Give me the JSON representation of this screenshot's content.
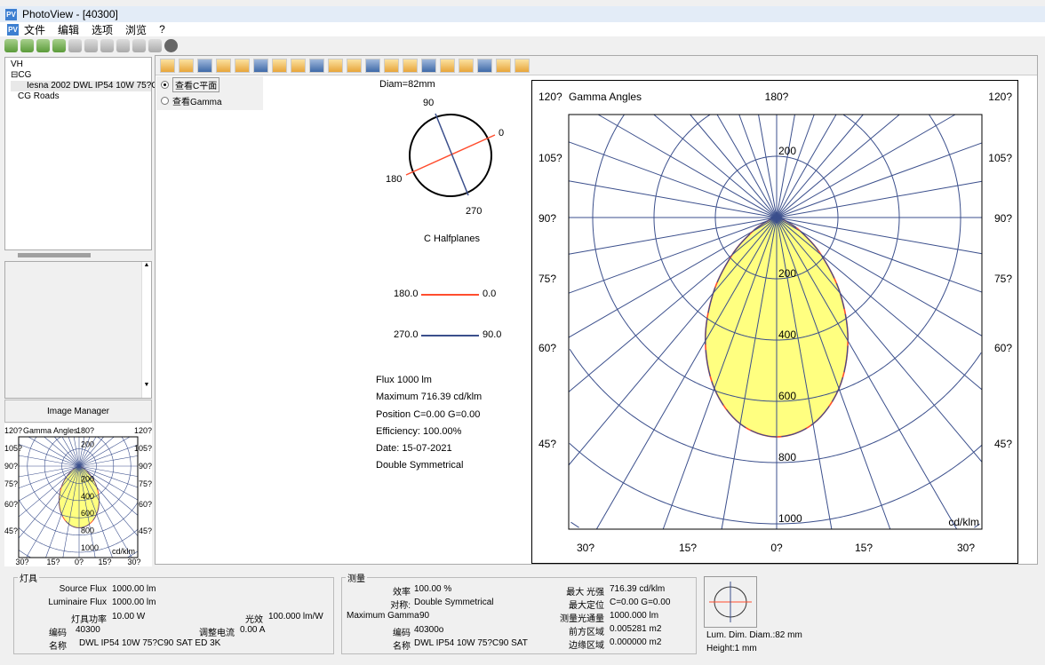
{
  "window": {
    "title": "PhotoView - [40300]",
    "icon": "PV"
  },
  "menu": [
    "文件",
    "编辑",
    "选项",
    "浏览",
    "?"
  ],
  "tree": {
    "items": [
      "VH",
      "CG",
      "Iesna 2002 DWL IP54 10W 75?C90",
      "CG Roads"
    ]
  },
  "image_manager_label": "Image Manager",
  "radio": {
    "c_planes": "查看C平面",
    "gamma": "查看Gamma",
    "selected": "c_planes"
  },
  "halfplanes": {
    "diam": "Diam=82mm",
    "labels": [
      "90",
      "0",
      "180",
      "270"
    ],
    "title": "C Halfplanes",
    "legend": [
      {
        "left": "180.0",
        "right": "0.0",
        "color": "#ff4d2e"
      },
      {
        "left": "270.0",
        "right": "90.0",
        "color": "#3b4f8c"
      }
    ]
  },
  "summary": {
    "flux": "Flux 1000  lm",
    "maximum": "Maximum 716.39  cd/klm",
    "position": "Position C=0.00 G=0.00",
    "efficiency": "Efficiency: 100.00%",
    "date": "Date: 15-07-2021",
    "symmetry": "Double Symmetrical"
  },
  "chart_data": {
    "type": "polar",
    "title": "Gamma Angles",
    "unit": "cd/klm",
    "radial_ticks": [
      200,
      400,
      600,
      800,
      1000
    ],
    "angle_labels": {
      "top": "180?",
      "sides": [
        "120?",
        "105?",
        "90?",
        "75?",
        "60?",
        "45?"
      ],
      "bottom": [
        "30?",
        "15?",
        "0?",
        "15?",
        "30?"
      ]
    },
    "gamma": [
      0,
      10,
      20,
      30,
      40,
      50,
      60,
      70,
      80,
      90
    ],
    "series": [
      {
        "name": "180.0 - 0.0",
        "color": "#ff4d2e",
        "values": [
          716,
          684,
          594,
          465,
          322,
          190,
          90,
          29,
          4,
          0
        ]
      },
      {
        "name": "270.0 - 90.0",
        "color": "#3b4f8c",
        "values": [
          716,
          684,
          594,
          465,
          322,
          190,
          90,
          29,
          4,
          0
        ]
      }
    ],
    "fill": "#ffff80",
    "grid_color": "#3b4f8c"
  },
  "luminaire": {
    "title": "灯具",
    "source_flux_label": "Source Flux",
    "source_flux": "1000.00 lm",
    "lum_flux_label": "Luminaire Flux",
    "lum_flux": "1000.00 lm",
    "power_label": "灯具功率",
    "power": "10.00 W",
    "efficacy_label": "光效",
    "efficacy": "100.000 lm/W",
    "code_label": "编码",
    "code": "40300",
    "current_label": "调整电流",
    "current": "0.00 A",
    "name_label": "名称",
    "name": "DWL IP54 10W 75?C90 SAT ED 3K"
  },
  "measure": {
    "title": "测量",
    "eff_label": "效率",
    "eff": "100.00 %",
    "sym_label": "对称:",
    "sym": "Double Symmetrical",
    "maxg_label": "Maximum Gamma",
    "maxg": "90",
    "code_label": "编码",
    "code": "40300o",
    "name_label": "名称",
    "name": "DWL IP54 10W 75?C90 SAT",
    "maxi_label": "最大 光强",
    "maxi": "716.39  cd/klm",
    "maxpos_label": "最大定位",
    "maxpos": "C=0.00 G=0.00",
    "mflux_label": "测量光通量",
    "mflux": "1000.000 lm",
    "front_label": "前方区域",
    "front": "0.005281 m2",
    "edge_label": "边缘区域",
    "edge": "0.000000 m2"
  },
  "lum_dim": {
    "diam": "Lum. Dim. Diam.:82 mm",
    "height": "Height:1 mm"
  }
}
